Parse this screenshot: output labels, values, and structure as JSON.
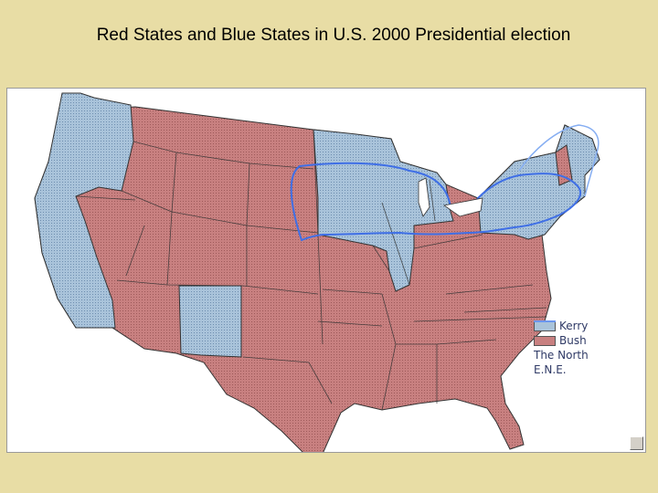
{
  "title": "Red States and Blue States in U.S. 2000 Presidential election",
  "colors": {
    "kerry": "#a9c3da",
    "bush": "#c88080",
    "north_line": "#3f6fe6",
    "ene_line": "#86aef2",
    "border": "#333333"
  },
  "legend": {
    "kerry": "Kerry",
    "bush": "Bush",
    "north": "The North",
    "ene": "E.N.E."
  }
}
